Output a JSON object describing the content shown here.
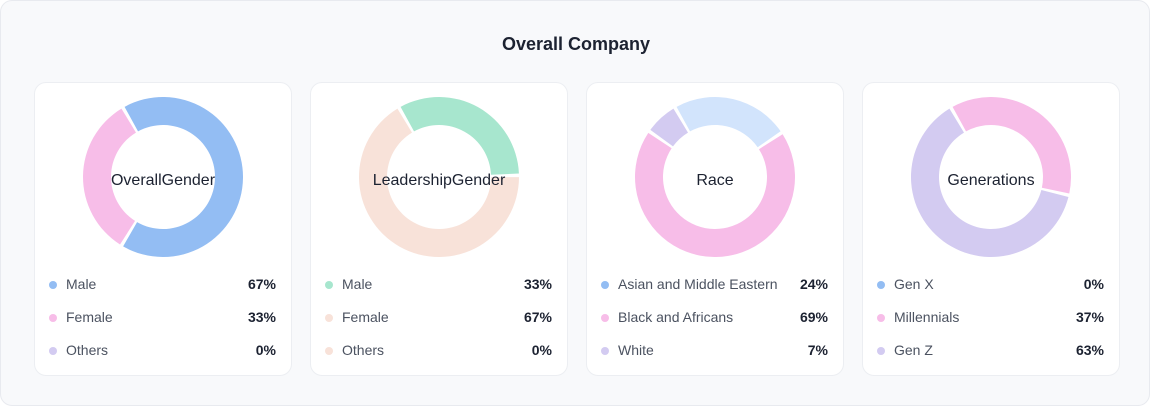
{
  "page": {
    "title": "Overall Company"
  },
  "chart_data": [
    {
      "type": "pie",
      "title": "Overall Gender",
      "center_lines": [
        "Overall",
        "Gender"
      ],
      "segments": [
        {
          "name": "Male",
          "value": 67,
          "display": "67%",
          "color": "#93bdf3"
        },
        {
          "name": "Female",
          "value": 33,
          "display": "33%",
          "color": "#f7bde8"
        },
        {
          "name": "Others",
          "value": 0,
          "display": "0%",
          "color": "#d3cbf1"
        }
      ]
    },
    {
      "type": "pie",
      "title": "Leadership Gender",
      "center_lines": [
        "Leadership",
        "Gender"
      ],
      "segments": [
        {
          "name": "Male",
          "value": 33,
          "display": "33%",
          "color": "#a7e6ce"
        },
        {
          "name": "Female",
          "value": 67,
          "display": "67%",
          "color": "#f8e2d9"
        },
        {
          "name": "Others",
          "value": 0,
          "display": "0%",
          "color": "#f8e2d9"
        }
      ]
    },
    {
      "type": "pie",
      "title": "Race",
      "center_lines": [
        "Race"
      ],
      "segments": [
        {
          "name": "Asian and Middle Eastern",
          "value": 24,
          "display": "24%",
          "color": "#93bdf3",
          "ring_color": "#d2e4fc"
        },
        {
          "name": "Black and Africans",
          "value": 69,
          "display": "69%",
          "color": "#f7bde8"
        },
        {
          "name": "White",
          "value": 7,
          "display": "7%",
          "color": "#d3cbf1"
        }
      ]
    },
    {
      "type": "pie",
      "title": "Generations",
      "center_lines": [
        "Generations"
      ],
      "segments": [
        {
          "name": "Gen X",
          "value": 0,
          "display": "0%",
          "color": "#93bdf3"
        },
        {
          "name": "Millennials",
          "value": 37,
          "display": "37%",
          "color": "#f7bde8"
        },
        {
          "name": "Gen Z",
          "value": 63,
          "display": "63%",
          "color": "#d3cbf1"
        }
      ]
    }
  ]
}
